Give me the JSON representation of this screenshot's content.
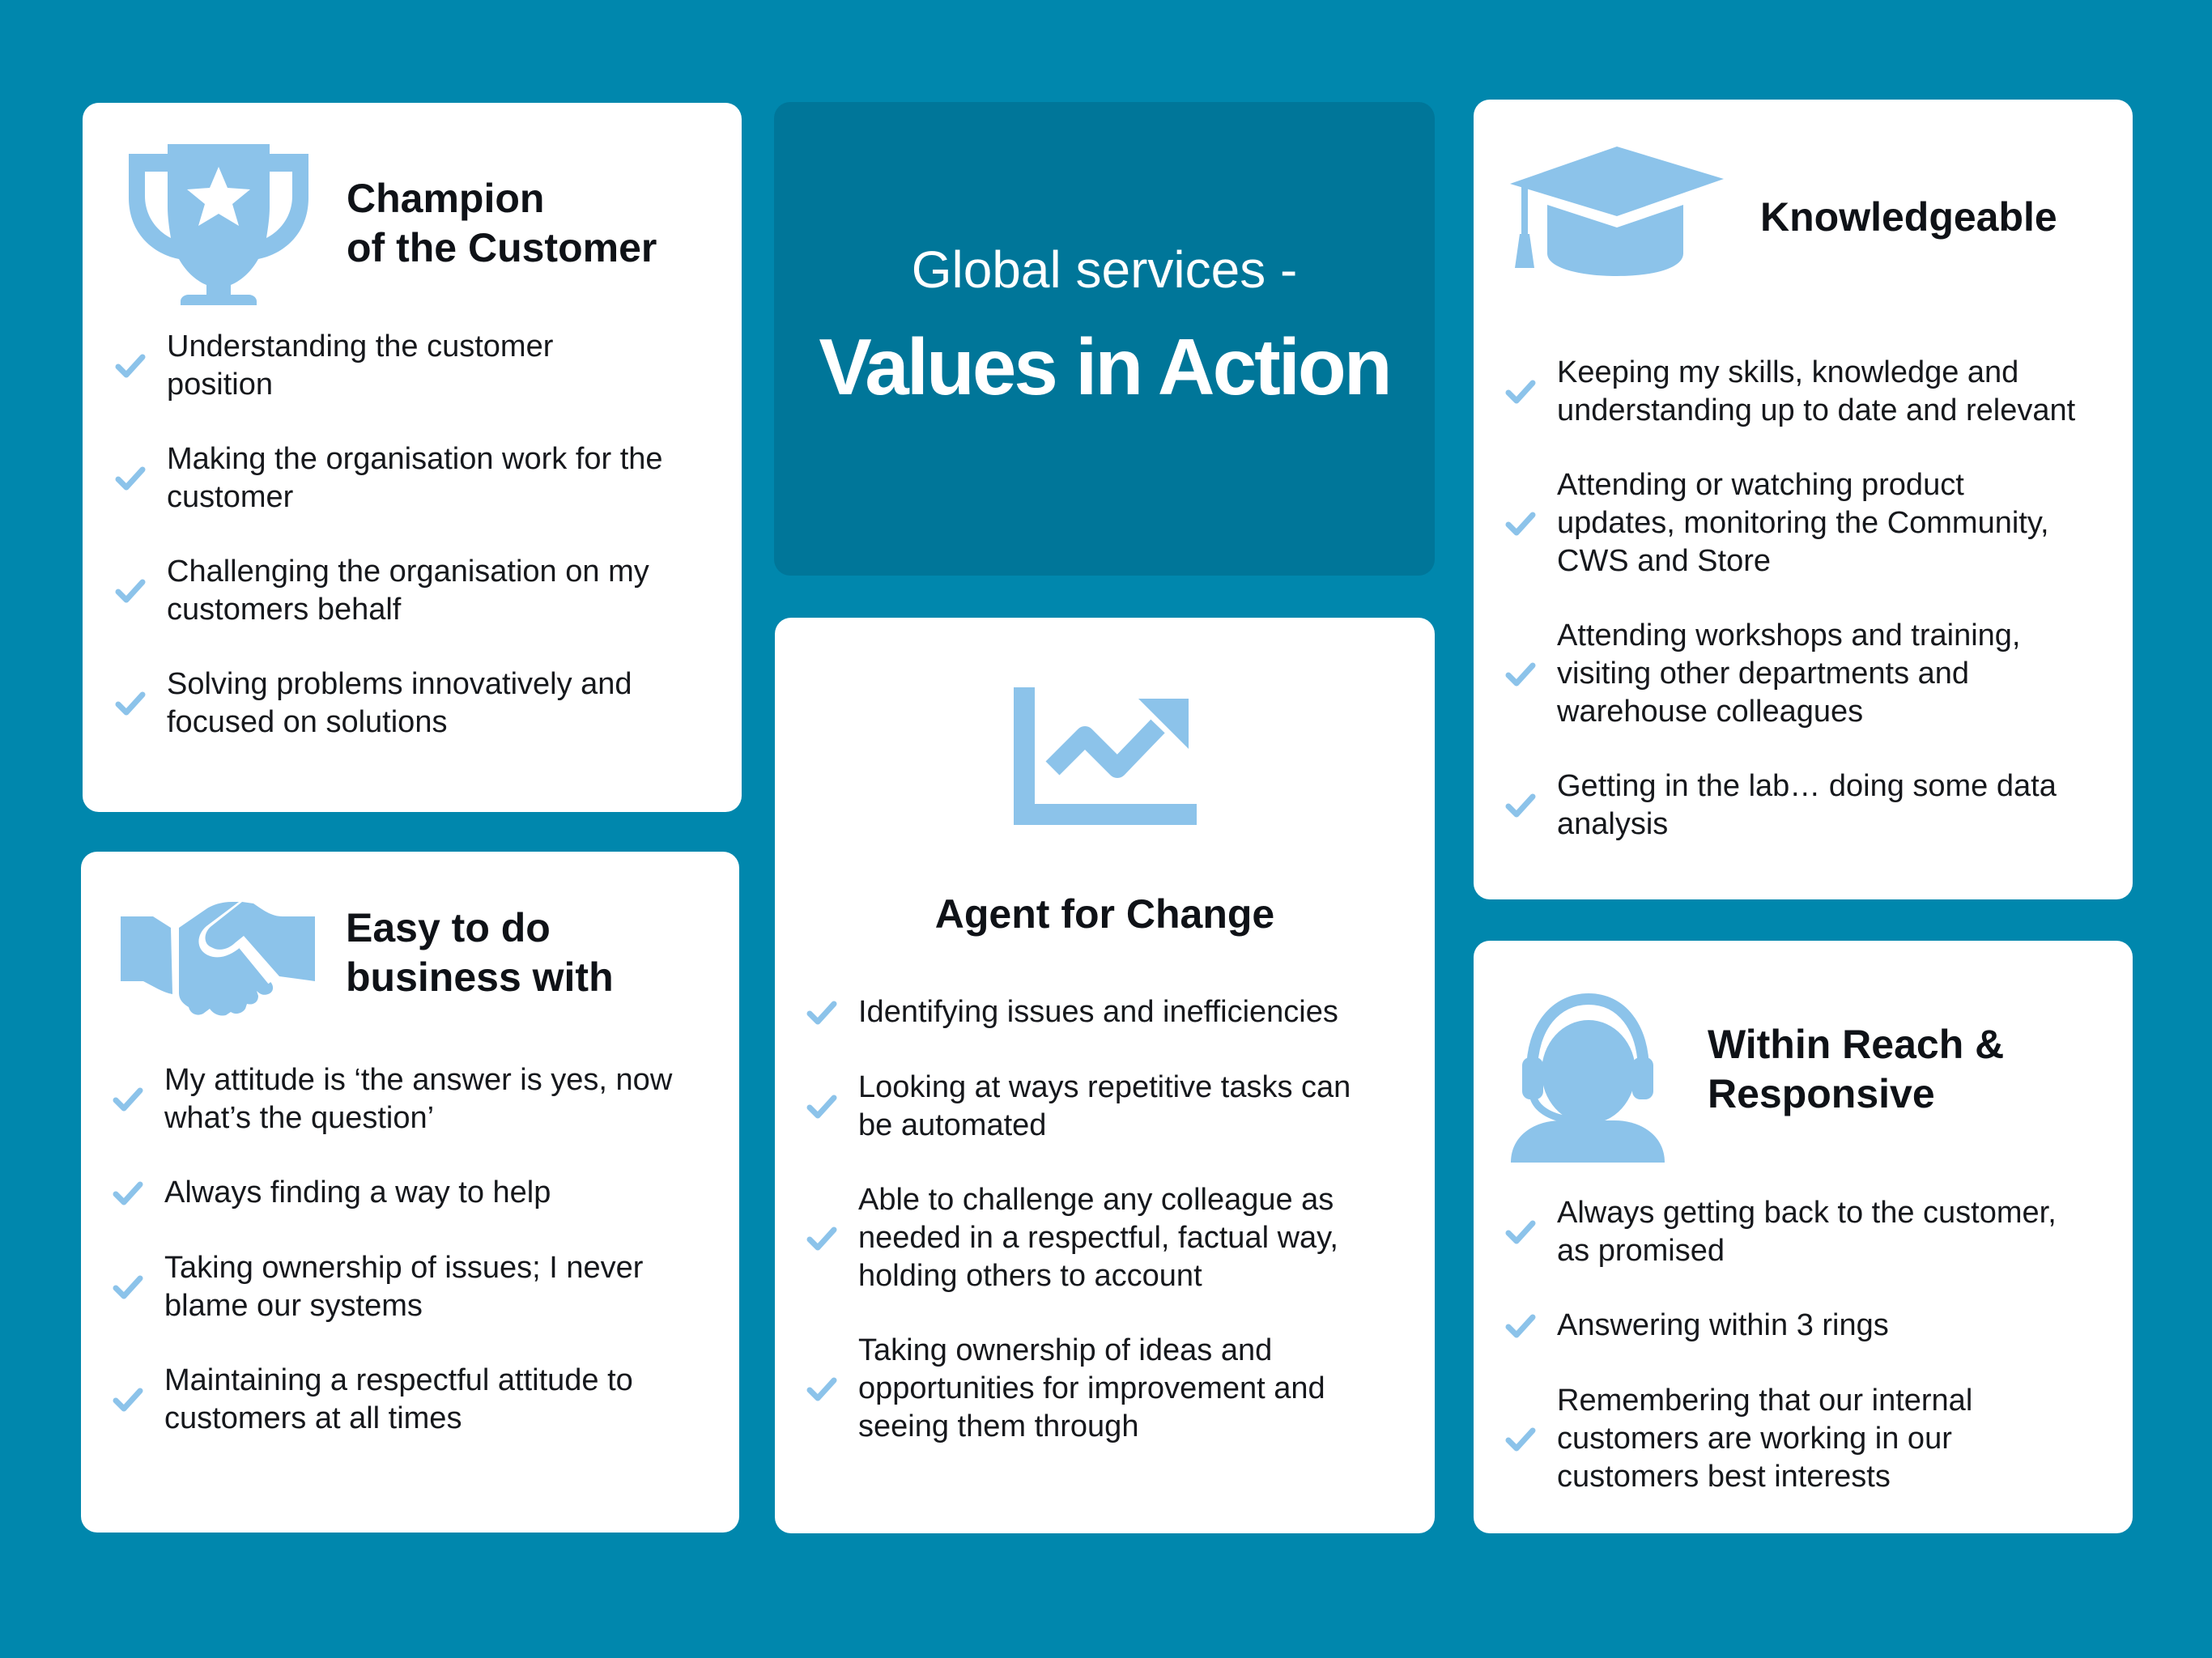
{
  "colors": {
    "background": "#0087ad",
    "center_panel": "#007699",
    "card": "#ffffff",
    "icon_and_check": "#8cc3ea",
    "title_text": "#0f1217"
  },
  "header": {
    "subtitle": "Global services -",
    "title": "Values in Action"
  },
  "cards": {
    "champion": {
      "icon": "trophy-icon",
      "title_lines": [
        "Champion",
        "of the Customer"
      ],
      "items": [
        [
          "Understanding the customer",
          "position"
        ],
        [
          "Making the organisation work for the",
          "customer"
        ],
        [
          "Challenging the organisation on my",
          "customers behalf"
        ],
        [
          "Solving problems innovatively and",
          "focused on solutions"
        ]
      ]
    },
    "easy": {
      "icon": "handshake-icon",
      "title_lines": [
        "Easy to do",
        "business with"
      ],
      "items": [
        [
          "My attitude is ‘the answer is yes, now",
          "what’s the question’"
        ],
        [
          "Always finding a way to help"
        ],
        [
          "Taking ownership of issues; I never",
          "blame our systems"
        ],
        [
          "Maintaining a respectful attitude to",
          "customers at all times"
        ]
      ]
    },
    "agent": {
      "icon": "trending-chart-icon",
      "title_lines": [
        "Agent for Change"
      ],
      "items": [
        [
          "Identifying issues and inefficiencies"
        ],
        [
          "Looking at ways repetitive tasks can",
          "be automated"
        ],
        [
          "Able to challenge any colleague as",
          "needed in a respectful, factual way,",
          "holding others to account"
        ],
        [
          "Taking ownership of ideas and",
          "opportunities for improvement and",
          "seeing them through"
        ]
      ]
    },
    "knowledgeable": {
      "icon": "graduation-cap-icon",
      "title_lines": [
        "Knowledgeable"
      ],
      "items": [
        [
          "Keeping my skills, knowledge and",
          "understanding up to date and relevant"
        ],
        [
          "Attending or watching product",
          "updates, monitoring the Community,",
          "CWS and Store"
        ],
        [
          "Attending workshops and training,",
          "visiting other departments and",
          "warehouse colleagues"
        ],
        [
          "Getting in the lab… doing some data",
          "analysis"
        ]
      ]
    },
    "reach": {
      "icon": "headset-agent-icon",
      "title_lines": [
        "Within Reach &",
        "Responsive"
      ],
      "items": [
        [
          "Always getting back to the customer,",
          "as promised"
        ],
        [
          "Answering within 3 rings"
        ],
        [
          "Remembering that our internal",
          "customers are working in our",
          "customers best interests"
        ]
      ]
    }
  }
}
